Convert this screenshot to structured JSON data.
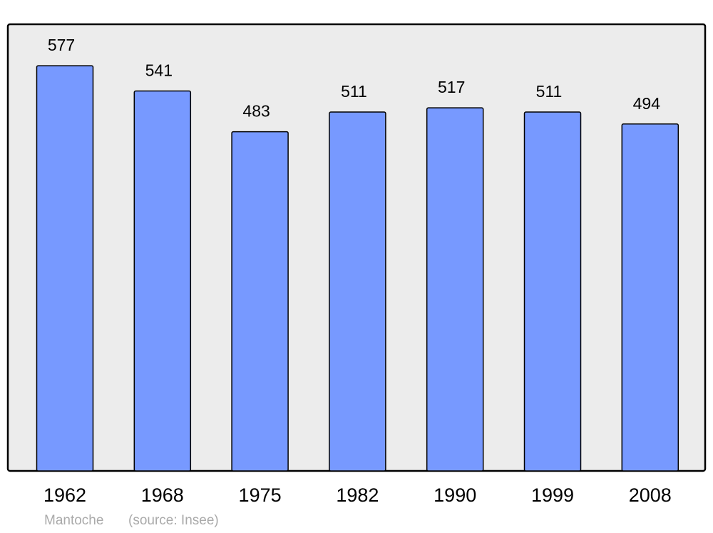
{
  "chart_data": {
    "type": "bar",
    "categories": [
      "1962",
      "1968",
      "1975",
      "1982",
      "1990",
      "1999",
      "2008"
    ],
    "values": [
      577,
      541,
      483,
      511,
      517,
      511,
      494
    ],
    "color": "#7799ff",
    "ylim": [
      0,
      635
    ],
    "credits": [
      "Mantoche",
      "(source: Insee)"
    ]
  }
}
